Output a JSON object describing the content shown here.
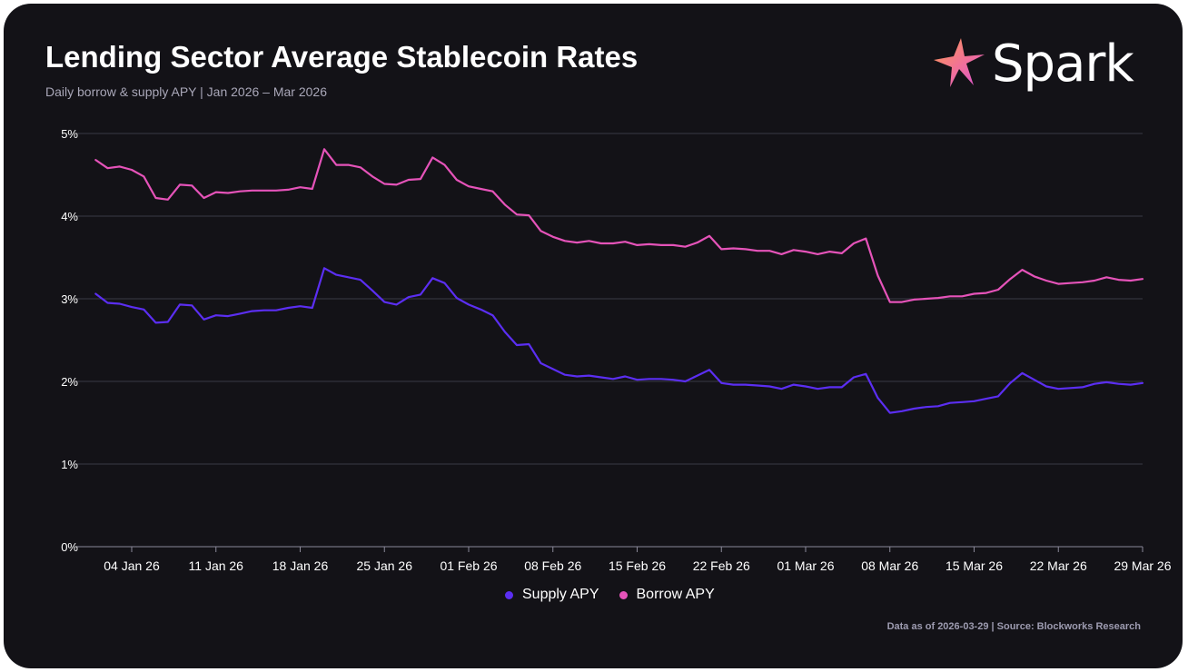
{
  "header": {
    "title": "Lending Sector Average Stablecoin Rates",
    "subtitle": "Daily borrow & supply APY | Jan 2026 – Mar 2026"
  },
  "logo": {
    "text": "Spark",
    "icon": "spark-star-icon"
  },
  "footer": {
    "source": "Data as of 2026-03-29 | Source: Blockworks Research"
  },
  "legend": [
    {
      "label": "Supply APY",
      "color": "#5b2ef2"
    },
    {
      "label": "Borrow APY",
      "color": "#e553b9"
    }
  ],
  "chart_data": {
    "type": "line",
    "x_start": "2026-01-01",
    "x_end": "2026-03-29",
    "xlim": [
      "2025-12-31",
      "2026-03-29"
    ],
    "x_tick_labels": [
      "04 Jan 26",
      "11 Jan 26",
      "18 Jan 26",
      "25 Jan 26",
      "01 Feb 26",
      "08 Feb 26",
      "15 Feb 26",
      "22 Feb 26",
      "01 Mar 26",
      "08 Mar 26",
      "15 Mar 26",
      "22 Mar 26",
      "29 Mar 26"
    ],
    "y_ticks": [
      0,
      1,
      2,
      3,
      4,
      5
    ],
    "y_tick_labels": [
      "0%",
      "1%",
      "2%",
      "3%",
      "4%",
      "5%"
    ],
    "ylim": [
      0,
      5
    ],
    "grid": true,
    "legend_position": "bottom-center",
    "series": [
      {
        "name": "Supply APY",
        "color": "#5b2ef2",
        "values": [
          3.06,
          2.95,
          2.94,
          2.9,
          2.87,
          2.71,
          2.72,
          2.93,
          2.92,
          2.75,
          2.8,
          2.79,
          2.82,
          2.85,
          2.86,
          2.86,
          2.89,
          2.91,
          2.89,
          3.37,
          3.29,
          3.26,
          3.23,
          3.1,
          2.96,
          2.93,
          3.02,
          3.05,
          3.25,
          3.19,
          3.01,
          2.93,
          2.87,
          2.8,
          2.6,
          2.44,
          2.45,
          2.22,
          2.15,
          2.08,
          2.06,
          2.07,
          2.05,
          2.03,
          2.06,
          2.02,
          2.03,
          2.03,
          2.02,
          2.0,
          2.07,
          2.14,
          1.98,
          1.96,
          1.96,
          1.95,
          1.94,
          1.91,
          1.96,
          1.94,
          1.91,
          1.93,
          1.93,
          2.05,
          2.09,
          1.8,
          1.62,
          1.64,
          1.67,
          1.69,
          1.7,
          1.74,
          1.75,
          1.76,
          1.79,
          1.82,
          1.98,
          2.1,
          2.02,
          1.94,
          1.91,
          1.92,
          1.93,
          1.97,
          1.99,
          1.97,
          1.96,
          1.98
        ]
      },
      {
        "name": "Borrow APY",
        "color": "#e553b9",
        "values": [
          4.68,
          4.58,
          4.6,
          4.56,
          4.48,
          4.22,
          4.2,
          4.38,
          4.37,
          4.22,
          4.29,
          4.28,
          4.3,
          4.31,
          4.31,
          4.31,
          4.32,
          4.35,
          4.33,
          4.81,
          4.62,
          4.62,
          4.59,
          4.48,
          4.39,
          4.38,
          4.44,
          4.45,
          4.71,
          4.62,
          4.44,
          4.36,
          4.33,
          4.3,
          4.14,
          4.02,
          4.01,
          3.82,
          3.75,
          3.7,
          3.68,
          3.7,
          3.67,
          3.67,
          3.69,
          3.65,
          3.66,
          3.65,
          3.65,
          3.63,
          3.68,
          3.76,
          3.6,
          3.61,
          3.6,
          3.58,
          3.58,
          3.54,
          3.59,
          3.57,
          3.54,
          3.57,
          3.55,
          3.67,
          3.73,
          3.28,
          2.96,
          2.96,
          2.99,
          3.0,
          3.01,
          3.03,
          3.03,
          3.06,
          3.07,
          3.11,
          3.24,
          3.35,
          3.27,
          3.22,
          3.18,
          3.19,
          3.2,
          3.22,
          3.26,
          3.23,
          3.22,
          3.24
        ]
      }
    ]
  }
}
